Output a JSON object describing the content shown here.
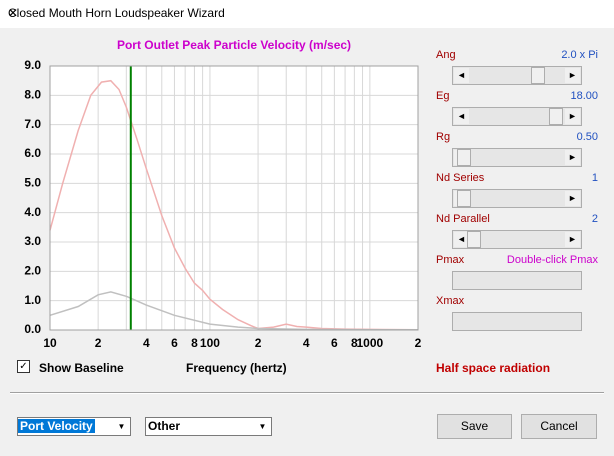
{
  "window": {
    "title": "Closed Mouth Horn Loudspeaker Wizard"
  },
  "chart_data": {
    "type": "line",
    "title": "Port Outlet Peak Particle Velocity (m/sec)",
    "x_label": "Frequency (hertz)",
    "log_x": true,
    "xlim": [
      10,
      2000
    ],
    "ylim": [
      0,
      9
    ],
    "xticks": [
      {
        "value": 10,
        "label": "10"
      },
      {
        "value": 20,
        "label": "2"
      },
      {
        "value": 40,
        "label": "4"
      },
      {
        "value": 60,
        "label": "6"
      },
      {
        "value": 80,
        "label": "8"
      },
      {
        "value": 100,
        "label": "100"
      },
      {
        "value": 200,
        "label": "2"
      },
      {
        "value": 400,
        "label": "4"
      },
      {
        "value": 600,
        "label": "6"
      },
      {
        "value": 800,
        "label": "8"
      },
      {
        "value": 1000,
        "label": "1000"
      },
      {
        "value": 2000,
        "label": "2"
      }
    ],
    "x_minor_grid": [
      30,
      50,
      70,
      90,
      300,
      500,
      700,
      900
    ],
    "yticks": [
      {
        "value": 0,
        "label": "0.0"
      },
      {
        "value": 1,
        "label": "1.0"
      },
      {
        "value": 2,
        "label": "2.0"
      },
      {
        "value": 3,
        "label": "3.0"
      },
      {
        "value": 4,
        "label": "4.0"
      },
      {
        "value": 5,
        "label": "5.0"
      },
      {
        "value": 6,
        "label": "6.0"
      },
      {
        "value": 7,
        "label": "7.0"
      },
      {
        "value": 8,
        "label": "8.0"
      },
      {
        "value": 9,
        "label": "9.0"
      }
    ],
    "grid": true,
    "grid_color": "#d8d8d8",
    "marker_x": 32,
    "marker_color": "#008000",
    "series": [
      {
        "color": "#f0b0b0",
        "x": [
          10,
          12,
          15,
          18,
          21,
          24,
          27,
          30,
          35,
          40,
          50,
          60,
          70,
          80,
          90,
          100,
          120,
          150,
          180,
          200,
          250,
          300,
          350,
          400,
          500,
          700,
          1000,
          2000
        ],
        "values": [
          3.4,
          5.0,
          6.8,
          8.0,
          8.45,
          8.5,
          8.2,
          7.6,
          6.5,
          5.5,
          3.9,
          2.8,
          2.1,
          1.6,
          1.35,
          1.05,
          0.7,
          0.35,
          0.15,
          0.05,
          0.1,
          0.2,
          0.12,
          0.1,
          0.05,
          0.03,
          0.02,
          0.01
        ]
      },
      {
        "color": "#c0c0c0",
        "x": [
          10,
          15,
          20,
          24,
          30,
          40,
          60,
          100,
          150,
          200,
          400,
          1000,
          2000
        ],
        "values": [
          0.5,
          0.8,
          1.2,
          1.3,
          1.15,
          0.85,
          0.5,
          0.2,
          0.1,
          0.05,
          0.02,
          0.01,
          0.01
        ]
      }
    ]
  },
  "sliders": [
    {
      "label": "Ang",
      "value": "2.0 x Pi"
    },
    {
      "label": "Eg",
      "value": "18.00"
    },
    {
      "label": "Rg",
      "value": "0.50"
    },
    {
      "label": "Nd  Series",
      "value": "1"
    },
    {
      "label": "Nd  Parallel",
      "value": "2"
    },
    {
      "label": "Pmax",
      "value": "Double-click Pmax"
    },
    {
      "label": "Xmax"
    }
  ],
  "checkbox": {
    "label": "Show Baseline"
  },
  "status": "Half space radiation",
  "dropdowns": [
    "Port Velocity",
    "Other"
  ],
  "buttons": [
    "Save",
    "Cancel"
  ]
}
